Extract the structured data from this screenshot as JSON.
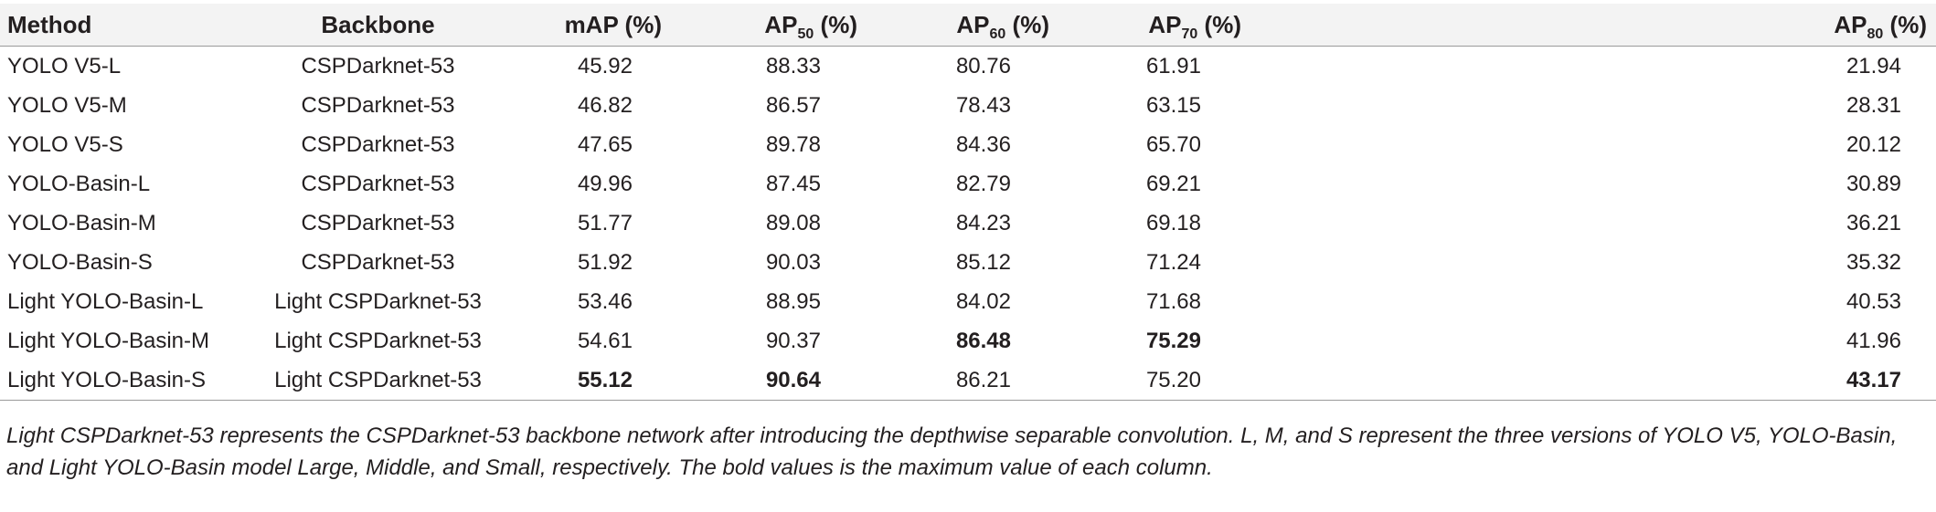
{
  "table": {
    "headers": [
      {
        "main": "Method",
        "sub": "",
        "suffix": ""
      },
      {
        "main": "Backbone",
        "sub": "",
        "suffix": ""
      },
      {
        "main": "mAP (%)",
        "sub": "",
        "suffix": ""
      },
      {
        "main": "AP",
        "sub": "50",
        "suffix": " (%)"
      },
      {
        "main": "AP",
        "sub": "60",
        "suffix": " (%)"
      },
      {
        "main": "AP",
        "sub": "70",
        "suffix": " (%)"
      },
      {
        "main": "AP",
        "sub": "80",
        "suffix": " (%)"
      }
    ],
    "rows": [
      [
        "YOLO V5-L",
        "CSPDarknet-53",
        "45.92",
        "88.33",
        "80.76",
        "61.91",
        "21.94"
      ],
      [
        "YOLO V5-M",
        "CSPDarknet-53",
        "46.82",
        "86.57",
        "78.43",
        "63.15",
        "28.31"
      ],
      [
        "YOLO V5-S",
        "CSPDarknet-53",
        "47.65",
        "89.78",
        "84.36",
        "65.70",
        "20.12"
      ],
      [
        "YOLO-Basin-L",
        "CSPDarknet-53",
        "49.96",
        "87.45",
        "82.79",
        "69.21",
        "30.89"
      ],
      [
        "YOLO-Basin-M",
        "CSPDarknet-53",
        "51.77",
        "89.08",
        "84.23",
        "69.18",
        "36.21"
      ],
      [
        "YOLO-Basin-S",
        "CSPDarknet-53",
        "51.92",
        "90.03",
        "85.12",
        "71.24",
        "35.32"
      ],
      [
        "Light YOLO-Basin-L",
        "Light CSPDarknet-53",
        "53.46",
        "88.95",
        "84.02",
        "71.68",
        "40.53"
      ],
      [
        "Light YOLO-Basin-M",
        "Light CSPDarknet-53",
        "54.61",
        "90.37",
        "86.48",
        "75.29",
        "41.96"
      ],
      [
        "Light YOLO-Basin-S",
        "Light CSPDarknet-53",
        "55.12",
        "90.64",
        "86.21",
        "75.20",
        "43.17"
      ]
    ],
    "bold_cells": [
      [
        7,
        4
      ],
      [
        7,
        5
      ],
      [
        8,
        2
      ],
      [
        8,
        3
      ],
      [
        8,
        6
      ]
    ]
  },
  "caption": "Light CSPDarknet-53 represents the CSPDarknet-53 backbone network after introducing the depthwise separable convolution. L, M, and S represent the three versions of YOLO V5, YOLO-Basin, and Light YOLO-Basin model Large, Middle, and Small, respectively. The bold values is the maximum value of each column."
}
